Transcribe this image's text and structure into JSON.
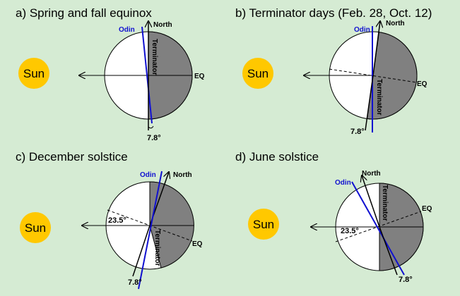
{
  "panels": [
    {
      "title": "a) Spring and fall equinox",
      "sun": "Sun",
      "north": "North",
      "odin": "Odin",
      "terminator": "Terminator",
      "eq": "EQ",
      "tilt": "7.8°"
    },
    {
      "title": "b) Terminator days (Feb. 28, Oct. 12)",
      "sun": "Sun",
      "north": "North",
      "odin": "Odin",
      "terminator": "Terminator",
      "eq": "EQ",
      "tilt": "7.8°"
    },
    {
      "title": "c) December solstice",
      "sun": "Sun",
      "north": "North",
      "odin": "Odin",
      "terminator": "Terminator",
      "eq": "EQ",
      "tilt": "7.8°",
      "declination": "23.5°"
    },
    {
      "title": "d) June solstice",
      "sun": "Sun",
      "north": "North",
      "odin": "Odin",
      "terminator": "Terminator",
      "eq": "EQ",
      "tilt": "7.8°",
      "declination": "23.5°"
    }
  ]
}
